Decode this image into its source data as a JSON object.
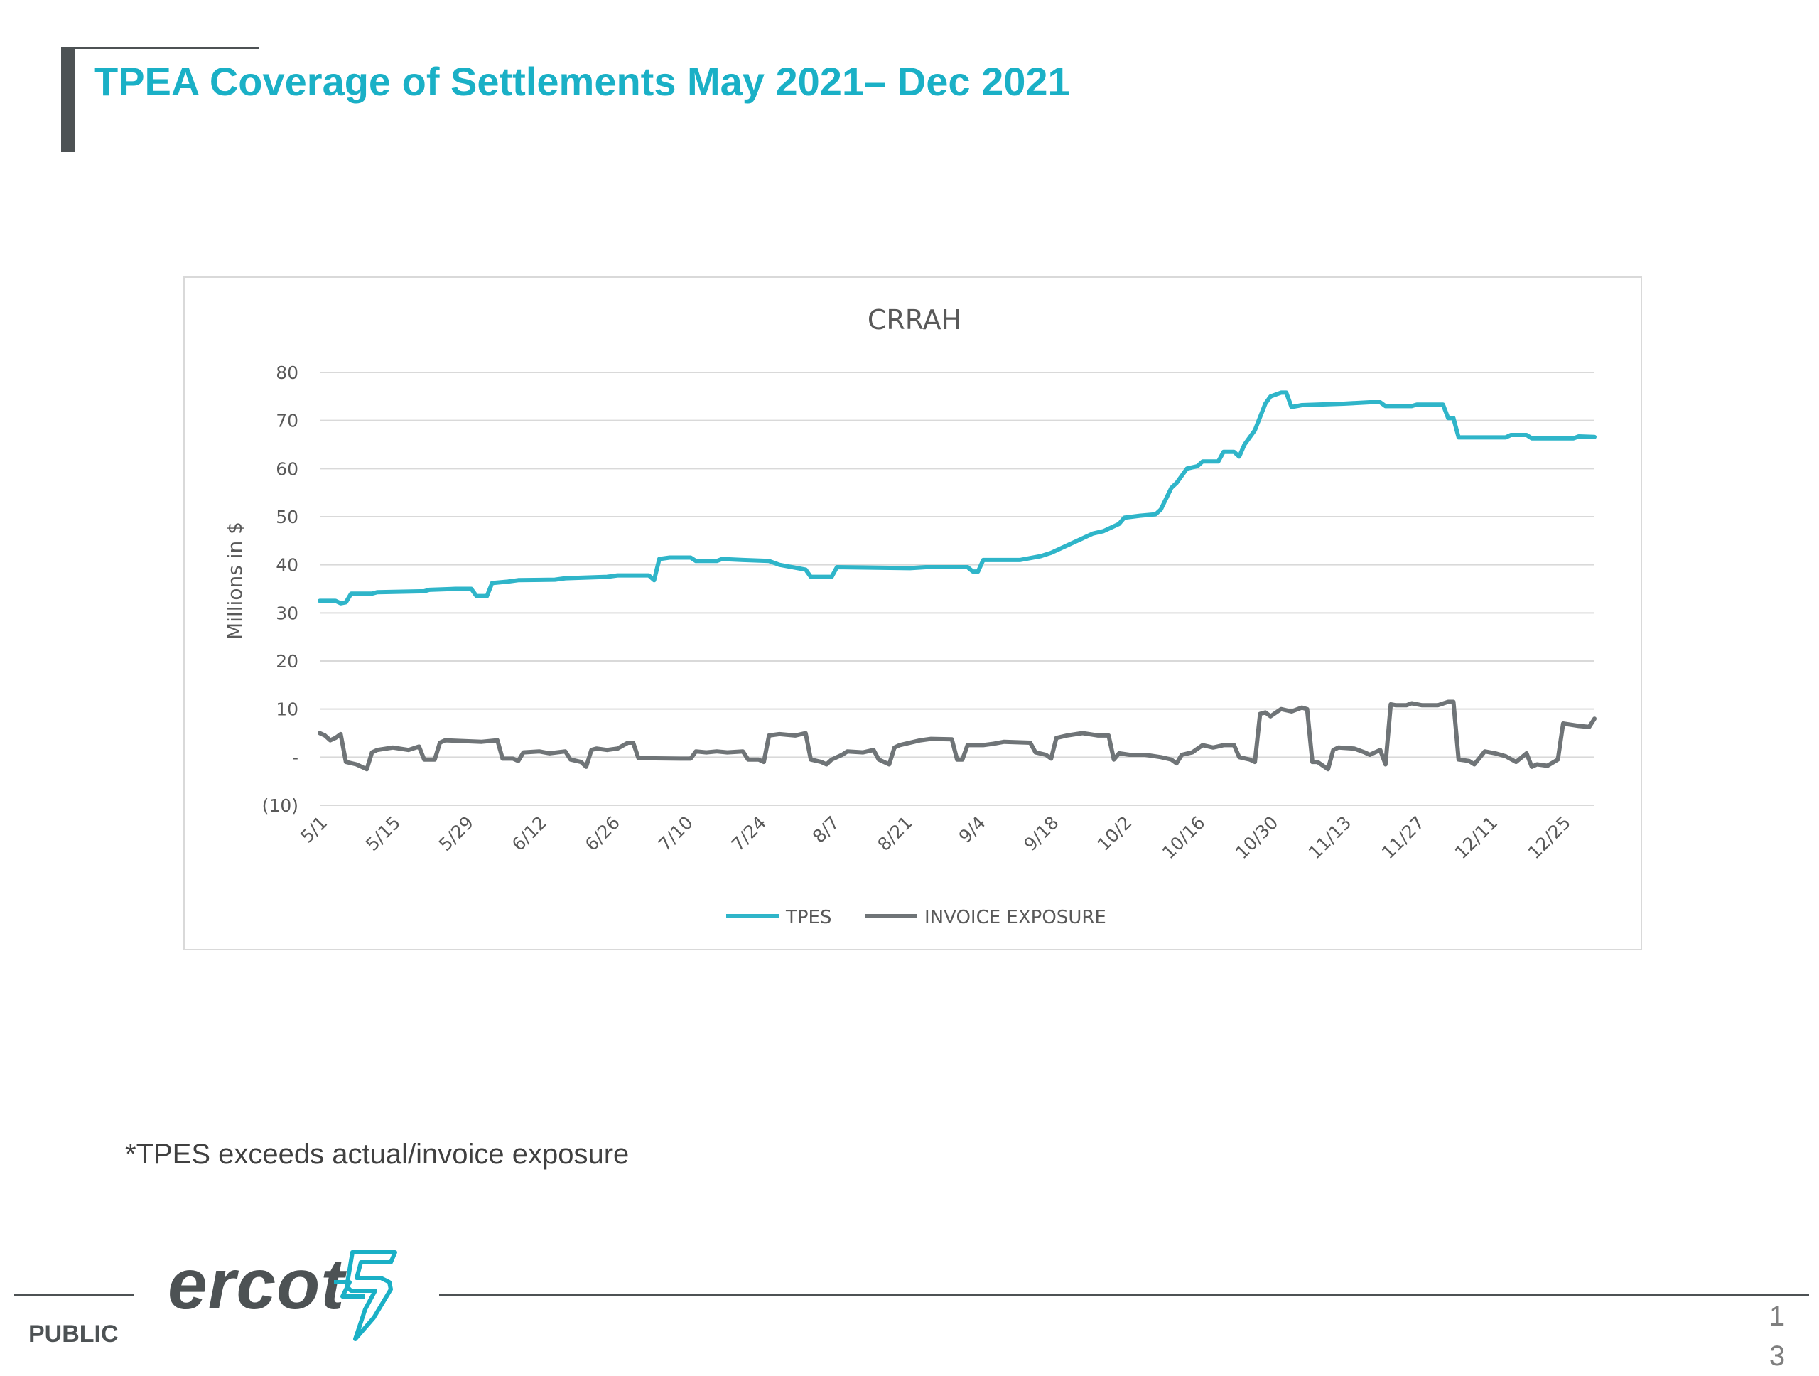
{
  "slide": {
    "title": "TPEA Coverage of Settlements May 2021– Dec 2021",
    "footnote": "*TPES exceeds actual/invoice exposure",
    "classification": "PUBLIC",
    "logo_text": "ercot",
    "page_number_line1": "1",
    "page_number_line2": "3"
  },
  "colors": {
    "title": "#1ab0c6",
    "tpes": "#2fb5c9",
    "invoice": "#6f7477",
    "gridline": "#d9d9d9",
    "axis_text": "#595959"
  },
  "chart_data": {
    "type": "line",
    "title": "CRRAH",
    "ylabel": "Millions in $",
    "xlabel": "",
    "ylim": [
      -10,
      80
    ],
    "yticks": [
      -10,
      0,
      10,
      20,
      30,
      40,
      50,
      60,
      70,
      80
    ],
    "ytick_labels": [
      "(10)",
      "-",
      "10",
      "20",
      "30",
      "40",
      "50",
      "60",
      "70",
      "80"
    ],
    "x_start": "2021-05-01",
    "x_end": "2021-12-31",
    "xtick_labels": [
      "5/1",
      "5/15",
      "5/29",
      "6/12",
      "6/26",
      "7/10",
      "7/24",
      "8/7",
      "8/21",
      "9/4",
      "9/18",
      "10/2",
      "10/16",
      "10/30",
      "11/13",
      "11/27",
      "12/11",
      "12/25"
    ],
    "grid": true,
    "legend_position": "bottom",
    "series": [
      {
        "name": "TPES",
        "color": "#2fb5c9",
        "points": [
          [
            "2021-05-01",
            32.5
          ],
          [
            "2021-05-04",
            32.5
          ],
          [
            "2021-05-05",
            32.0
          ],
          [
            "2021-05-06",
            32.2
          ],
          [
            "2021-05-07",
            34.0
          ],
          [
            "2021-05-11",
            34.0
          ],
          [
            "2021-05-12",
            34.3
          ],
          [
            "2021-05-21",
            34.5
          ],
          [
            "2021-05-22",
            34.8
          ],
          [
            "2021-05-27",
            35.0
          ],
          [
            "2021-05-30",
            35.0
          ],
          [
            "2021-05-31",
            33.5
          ],
          [
            "2021-06-02",
            33.5
          ],
          [
            "2021-06-03",
            36.2
          ],
          [
            "2021-06-06",
            36.5
          ],
          [
            "2021-06-08",
            36.8
          ],
          [
            "2021-06-15",
            36.9
          ],
          [
            "2021-06-17",
            37.2
          ],
          [
            "2021-06-25",
            37.5
          ],
          [
            "2021-06-27",
            37.8
          ],
          [
            "2021-07-03",
            37.8
          ],
          [
            "2021-07-04",
            36.8
          ],
          [
            "2021-07-05",
            41.2
          ],
          [
            "2021-07-07",
            41.5
          ],
          [
            "2021-07-11",
            41.5
          ],
          [
            "2021-07-12",
            40.8
          ],
          [
            "2021-07-16",
            40.8
          ],
          [
            "2021-07-17",
            41.2
          ],
          [
            "2021-07-21",
            41.0
          ],
          [
            "2021-07-26",
            40.8
          ],
          [
            "2021-07-28",
            40.0
          ],
          [
            "2021-08-02",
            39.0
          ],
          [
            "2021-08-03",
            37.5
          ],
          [
            "2021-08-07",
            37.5
          ],
          [
            "2021-08-08",
            39.5
          ],
          [
            "2021-08-22",
            39.3
          ],
          [
            "2021-08-25",
            39.5
          ],
          [
            "2021-09-02",
            39.5
          ],
          [
            "2021-09-03",
            38.6
          ],
          [
            "2021-09-04",
            38.6
          ],
          [
            "2021-09-05",
            41.0
          ],
          [
            "2021-09-12",
            41.0
          ],
          [
            "2021-09-16",
            41.8
          ],
          [
            "2021-09-18",
            42.5
          ],
          [
            "2021-09-21",
            44.0
          ],
          [
            "2021-09-26",
            46.5
          ],
          [
            "2021-09-28",
            47.0
          ],
          [
            "2021-10-01",
            48.5
          ],
          [
            "2021-10-02",
            49.8
          ],
          [
            "2021-10-05",
            50.2
          ],
          [
            "2021-10-08",
            50.5
          ],
          [
            "2021-10-09",
            51.5
          ],
          [
            "2021-10-11",
            56.0
          ],
          [
            "2021-10-12",
            57.0
          ],
          [
            "2021-10-14",
            60.0
          ],
          [
            "2021-10-16",
            60.5
          ],
          [
            "2021-10-17",
            61.5
          ],
          [
            "2021-10-20",
            61.5
          ],
          [
            "2021-10-21",
            63.5
          ],
          [
            "2021-10-23",
            63.5
          ],
          [
            "2021-10-24",
            62.5
          ],
          [
            "2021-10-25",
            65.0
          ],
          [
            "2021-10-27",
            68.0
          ],
          [
            "2021-10-29",
            73.5
          ],
          [
            "2021-10-30",
            75.0
          ],
          [
            "2021-11-01",
            75.8
          ],
          [
            "2021-11-02",
            75.8
          ],
          [
            "2021-11-03",
            72.8
          ],
          [
            "2021-11-05",
            73.2
          ],
          [
            "2021-11-13",
            73.5
          ],
          [
            "2021-11-18",
            73.8
          ],
          [
            "2021-11-20",
            73.8
          ],
          [
            "2021-11-21",
            73.0
          ],
          [
            "2021-11-26",
            73.0
          ],
          [
            "2021-11-27",
            73.3
          ],
          [
            "2021-12-02",
            73.3
          ],
          [
            "2021-12-03",
            70.5
          ],
          [
            "2021-12-04",
            70.5
          ],
          [
            "2021-12-05",
            66.5
          ],
          [
            "2021-12-14",
            66.5
          ],
          [
            "2021-12-15",
            67.0
          ],
          [
            "2021-12-18",
            67.0
          ],
          [
            "2021-12-19",
            66.3
          ],
          [
            "2021-12-27",
            66.3
          ],
          [
            "2021-12-28",
            66.7
          ],
          [
            "2021-12-31",
            66.6
          ]
        ]
      },
      {
        "name": "INVOICE EXPOSURE",
        "color": "#6f7477",
        "points": [
          [
            "2021-05-01",
            5.0
          ],
          [
            "2021-05-02",
            4.5
          ],
          [
            "2021-05-03",
            3.5
          ],
          [
            "2021-05-04",
            4.0
          ],
          [
            "2021-05-05",
            4.8
          ],
          [
            "2021-05-06",
            -1.0
          ],
          [
            "2021-05-08",
            -1.5
          ],
          [
            "2021-05-10",
            -2.5
          ],
          [
            "2021-05-11",
            1.0
          ],
          [
            "2021-05-12",
            1.5
          ],
          [
            "2021-05-15",
            2.0
          ],
          [
            "2021-05-18",
            1.5
          ],
          [
            "2021-05-20",
            2.2
          ],
          [
            "2021-05-21",
            -0.5
          ],
          [
            "2021-05-23",
            -0.5
          ],
          [
            "2021-05-24",
            3.0
          ],
          [
            "2021-05-25",
            3.5
          ],
          [
            "2021-06-01",
            3.2
          ],
          [
            "2021-06-04",
            3.5
          ],
          [
            "2021-06-05",
            -0.3
          ],
          [
            "2021-06-07",
            -0.3
          ],
          [
            "2021-06-08",
            -0.8
          ],
          [
            "2021-06-09",
            1.0
          ],
          [
            "2021-06-12",
            1.2
          ],
          [
            "2021-06-14",
            0.8
          ],
          [
            "2021-06-17",
            1.2
          ],
          [
            "2021-06-18",
            -0.5
          ],
          [
            "2021-06-20",
            -1.0
          ],
          [
            "2021-06-21",
            -2.0
          ],
          [
            "2021-06-22",
            1.5
          ],
          [
            "2021-06-23",
            1.8
          ],
          [
            "2021-06-25",
            1.5
          ],
          [
            "2021-06-27",
            1.8
          ],
          [
            "2021-06-29",
            3.0
          ],
          [
            "2021-06-30",
            3.0
          ],
          [
            "2021-07-01",
            -0.2
          ],
          [
            "2021-07-09",
            -0.3
          ],
          [
            "2021-07-11",
            -0.3
          ],
          [
            "2021-07-12",
            1.2
          ],
          [
            "2021-07-14",
            1.0
          ],
          [
            "2021-07-16",
            1.2
          ],
          [
            "2021-07-18",
            1.0
          ],
          [
            "2021-07-21",
            1.2
          ],
          [
            "2021-07-22",
            -0.5
          ],
          [
            "2021-07-24",
            -0.5
          ],
          [
            "2021-07-25",
            -1.0
          ],
          [
            "2021-07-26",
            4.5
          ],
          [
            "2021-07-28",
            4.8
          ],
          [
            "2021-07-31",
            4.5
          ],
          [
            "2021-08-02",
            5.0
          ],
          [
            "2021-08-03",
            -0.5
          ],
          [
            "2021-08-05",
            -1.0
          ],
          [
            "2021-08-06",
            -1.5
          ],
          [
            "2021-08-07",
            -0.5
          ],
          [
            "2021-08-09",
            0.5
          ],
          [
            "2021-08-10",
            1.2
          ],
          [
            "2021-08-13",
            1.0
          ],
          [
            "2021-08-15",
            1.5
          ],
          [
            "2021-08-16",
            -0.5
          ],
          [
            "2021-08-17",
            -1.0
          ],
          [
            "2021-08-18",
            -1.5
          ],
          [
            "2021-08-19",
            2.0
          ],
          [
            "2021-08-20",
            2.5
          ],
          [
            "2021-08-24",
            3.5
          ],
          [
            "2021-08-26",
            3.8
          ],
          [
            "2021-08-30",
            3.7
          ],
          [
            "2021-08-31",
            -0.5
          ],
          [
            "2021-09-01",
            -0.5
          ],
          [
            "2021-09-02",
            2.5
          ],
          [
            "2021-09-05",
            2.5
          ],
          [
            "2021-09-07",
            2.8
          ],
          [
            "2021-09-09",
            3.2
          ],
          [
            "2021-09-14",
            3.0
          ],
          [
            "2021-09-15",
            1.0
          ],
          [
            "2021-09-17",
            0.5
          ],
          [
            "2021-09-18",
            -0.3
          ],
          [
            "2021-09-19",
            4.0
          ],
          [
            "2021-09-21",
            4.5
          ],
          [
            "2021-09-24",
            5.0
          ],
          [
            "2021-09-27",
            4.5
          ],
          [
            "2021-09-29",
            4.5
          ],
          [
            "2021-09-30",
            -0.5
          ],
          [
            "2021-10-01",
            0.8
          ],
          [
            "2021-10-03",
            0.5
          ],
          [
            "2021-10-06",
            0.5
          ],
          [
            "2021-10-09",
            0.0
          ],
          [
            "2021-10-11",
            -0.5
          ],
          [
            "2021-10-12",
            -1.3
          ],
          [
            "2021-10-13",
            0.5
          ],
          [
            "2021-10-15",
            1.0
          ],
          [
            "2021-10-17",
            2.5
          ],
          [
            "2021-10-19",
            2.0
          ],
          [
            "2021-10-21",
            2.5
          ],
          [
            "2021-10-23",
            2.5
          ],
          [
            "2021-10-24",
            0.0
          ],
          [
            "2021-10-26",
            -0.5
          ],
          [
            "2021-10-27",
            -1.0
          ],
          [
            "2021-10-28",
            9.0
          ],
          [
            "2021-10-29",
            9.3
          ],
          [
            "2021-10-30",
            8.5
          ],
          [
            "2021-11-01",
            10.0
          ],
          [
            "2021-11-03",
            9.5
          ],
          [
            "2021-11-05",
            10.3
          ],
          [
            "2021-11-06",
            10.0
          ],
          [
            "2021-11-07",
            -1.0
          ],
          [
            "2021-11-08",
            -1.0
          ],
          [
            "2021-11-10",
            -2.5
          ],
          [
            "2021-11-11",
            1.5
          ],
          [
            "2021-11-12",
            2.0
          ],
          [
            "2021-11-15",
            1.8
          ],
          [
            "2021-11-17",
            1.0
          ],
          [
            "2021-11-18",
            0.5
          ],
          [
            "2021-11-20",
            1.5
          ],
          [
            "2021-11-21",
            -1.5
          ],
          [
            "2021-11-22",
            11.0
          ],
          [
            "2021-11-23",
            10.8
          ],
          [
            "2021-11-25",
            10.8
          ],
          [
            "2021-11-26",
            11.2
          ],
          [
            "2021-11-28",
            10.8
          ],
          [
            "2021-12-01",
            10.8
          ],
          [
            "2021-12-03",
            11.5
          ],
          [
            "2021-12-04",
            11.5
          ],
          [
            "2021-12-05",
            -0.5
          ],
          [
            "2021-12-07",
            -0.8
          ],
          [
            "2021-12-08",
            -1.5
          ],
          [
            "2021-12-10",
            1.2
          ],
          [
            "2021-12-12",
            0.8
          ],
          [
            "2021-12-14",
            0.2
          ],
          [
            "2021-12-16",
            -1.0
          ],
          [
            "2021-12-18",
            0.8
          ],
          [
            "2021-12-19",
            -2.0
          ],
          [
            "2021-12-20",
            -1.5
          ],
          [
            "2021-12-22",
            -1.8
          ],
          [
            "2021-12-24",
            -0.5
          ],
          [
            "2021-12-25",
            7.0
          ],
          [
            "2021-12-28",
            6.5
          ],
          [
            "2021-12-30",
            6.3
          ],
          [
            "2021-12-31",
            8.0
          ]
        ]
      }
    ]
  }
}
